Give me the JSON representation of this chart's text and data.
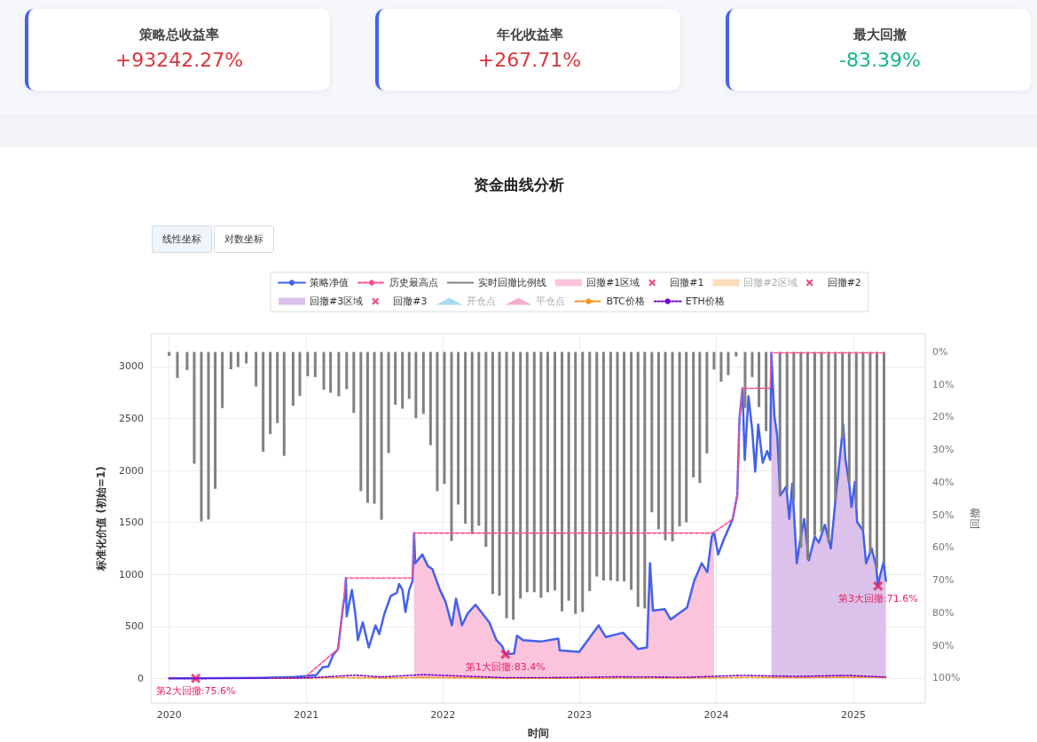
{
  "chart_data": [
    {
      "type": "other",
      "categories": [
        "策略总收益率",
        "年化收益率",
        "最大回撤"
      ],
      "value_labels": [
        "+93242.27%",
        "+267.71%",
        "-83.39%"
      ]
    },
    {
      "type": "line",
      "title": "资金曲线分析",
      "xlabel": "时间",
      "ylabel": "标准化价值 (初始=1)",
      "y2label": "回撤",
      "annotations": [
        "线性坐标",
        "对数坐标",
        {
          "text": "第1大回撤:83.4%",
          "x": "2022-06-17",
          "y": 232
        },
        {
          "text": "第2大回撤:75.6%",
          "x": "2020-03-12",
          "y": 1
        },
        {
          "text": "第3大回撤:71.6%",
          "x": "2025-03-08",
          "y": 889
        }
      ],
      "xlim": [
        "2019-11-13",
        "2025-07-12"
      ],
      "xticks": [
        "2020",
        "2021",
        "2022",
        "2023",
        "2024",
        "2025"
      ],
      "ylim": [
        -235,
        3315
      ],
      "yticks": [
        0,
        500,
        1000,
        1500,
        2000,
        2500,
        3000
      ],
      "y2lim": [
        107.7,
        -5.6
      ],
      "y2ticks": [
        {
          "value": 0,
          "label": "0%"
        },
        {
          "value": 10,
          "label": "10%"
        },
        {
          "value": 20,
          "label": "20%"
        },
        {
          "value": 30,
          "label": "30%"
        },
        {
          "value": 40,
          "label": "40%"
        },
        {
          "value": 50,
          "label": "50%"
        },
        {
          "value": 60,
          "label": "60%"
        },
        {
          "value": 70,
          "label": "70%"
        },
        {
          "value": 80,
          "label": "80%"
        },
        {
          "value": 90,
          "label": "90%"
        },
        {
          "value": 100,
          "label": "100%"
        }
      ],
      "grid": true,
      "legend": "top",
      "series": [
        {
          "name": "策略净值",
          "type": "line",
          "color": "#4361ee",
          "x": [
            "2020-01-01",
            "2020-03-12",
            "2020-06-01",
            "2020-09-01",
            "2020-12-01",
            "2021-01-01",
            "2021-01-28",
            "2021-02-14",
            "2021-03-01",
            "2021-03-14",
            "2021-03-27",
            "2021-04-10",
            "2021-04-14",
            "2021-04-17",
            "2021-04-19",
            "2021-05-03",
            "2021-05-12",
            "2021-05-19",
            "2021-06-01",
            "2021-06-17",
            "2021-07-05",
            "2021-07-15",
            "2021-07-29",
            "2021-08-15",
            "2021-08-31",
            "2021-09-06",
            "2021-09-15",
            "2021-09-23",
            "2021-10-03",
            "2021-10-12",
            "2021-10-16",
            "2021-10-19",
            "2021-11-07",
            "2021-11-22",
            "2021-12-04",
            "2021-12-24",
            "2022-01-08",
            "2022-01-25",
            "2022-02-05",
            "2022-02-21",
            "2022-03-08",
            "2022-03-29",
            "2022-05-05",
            "2022-05-24",
            "2022-06-08",
            "2022-06-17",
            "2022-07-10",
            "2022-07-18",
            "2022-08-03",
            "2022-09-19",
            "2022-11-05",
            "2022-11-09",
            "2022-12-31",
            "2023-02-21",
            "2023-03-12",
            "2023-04-27",
            "2023-06-06",
            "2023-06-30",
            "2023-07-08",
            "2023-07-16",
            "2023-08-16",
            "2023-09-01",
            "2023-10-15",
            "2023-11-03",
            "2023-11-23",
            "2023-12-08",
            "2023-12-20",
            "2023-12-26",
            "2024-01-06",
            "2024-01-21",
            "2024-02-14",
            "2024-02-26",
            "2024-03-03",
            "2024-03-11",
            "2024-03-17",
            "2024-03-27",
            "2024-04-06",
            "2024-04-14",
            "2024-04-22",
            "2024-05-04",
            "2024-05-16",
            "2024-05-24",
            "2024-05-27",
            "2024-06-04",
            "2024-06-12",
            "2024-06-20",
            "2024-07-06",
            "2024-07-14",
            "2024-07-22",
            "2024-08-03",
            "2024-08-11",
            "2024-08-23",
            "2024-09-04",
            "2024-09-20",
            "2024-10-01",
            "2024-10-17",
            "2024-11-02",
            "2024-11-14",
            "2024-12-05",
            "2024-12-11",
            "2024-12-21",
            "2024-12-27",
            "2025-01-05",
            "2025-01-11",
            "2025-01-27",
            "2025-02-04",
            "2025-02-19",
            "2025-03-03",
            "2025-03-08",
            "2025-03-11",
            "2025-03-23",
            "2025-03-29"
          ],
          "values": [
            1,
            1,
            3,
            6,
            15,
            23,
            34,
            108,
            114,
            227,
            284,
            710,
            795,
            966,
            597,
            852,
            625,
            369,
            540,
            298,
            511,
            426,
            625,
            795,
            824,
            909,
            852,
            639,
            852,
            937,
            1398,
            1108,
            1193,
            1080,
            1051,
            852,
            739,
            511,
            767,
            511,
            625,
            710,
            540,
            369,
            313,
            232,
            241,
            412,
            369,
            355,
            384,
            270,
            256,
            511,
            398,
            440,
            284,
            298,
            1108,
            653,
            668,
            568,
            682,
            938,
            1108,
            1023,
            1364,
            1406,
            1193,
            1335,
            1534,
            1761,
            2500,
            2790,
            2102,
            2713,
            2386,
            1989,
            2443,
            2074,
            2188,
            2102,
            3131,
            2528,
            2330,
            1761,
            1847,
            1534,
            1875,
            1108,
            1307,
            1534,
            1136,
            1364,
            1307,
            1477,
            1250,
            1705,
            2443,
            2102,
            1875,
            1648,
            1889,
            1506,
            1420,
            1108,
            1250,
            1080,
            889,
            952,
            1122,
            938
          ]
        },
        {
          "name": "历史最高点",
          "type": "line",
          "color": "#ff4d94",
          "line_style": "dashed",
          "x": [
            "2021-01-01",
            "2021-03-27",
            "2021-04-10",
            "2021-04-17",
            "2021-10-12",
            "2021-10-16",
            "2023-12-20",
            "2023-12-26",
            "2024-02-14",
            "2024-02-26",
            "2024-03-03",
            "2024-03-11",
            "2024-05-24",
            "2024-05-27",
            "2025-03-29"
          ],
          "values": [
            23,
            284,
            710,
            966,
            966,
            1398,
            1398,
            1406,
            1534,
            1761,
            2500,
            2790,
            2790,
            3131,
            3131
          ]
        },
        {
          "name": "实时回撤比例线",
          "type": "bar",
          "axis": "y2",
          "color": "#808080",
          "x": [
            "2020-01-01",
            "2020-01-23",
            "2020-02-18",
            "2020-03-08",
            "2020-03-27",
            "2020-04-15",
            "2020-05-03",
            "2020-05-22",
            "2020-06-14",
            "2020-07-03",
            "2020-07-25",
            "2020-08-20",
            "2020-09-08",
            "2020-09-27",
            "2020-10-16",
            "2020-11-03",
            "2020-11-27",
            "2020-12-15",
            "2021-01-05",
            "2021-01-25",
            "2021-02-17",
            "2021-03-07",
            "2021-03-29",
            "2021-04-19",
            "2021-05-08",
            "2021-05-27",
            "2021-06-14",
            "2021-07-02",
            "2021-07-21",
            "2021-08-09",
            "2021-08-27",
            "2021-09-15",
            "2021-10-03",
            "2021-10-21",
            "2021-11-10",
            "2021-11-29",
            "2021-12-17",
            "2022-01-05",
            "2022-01-24",
            "2022-02-11",
            "2022-03-02",
            "2022-03-20",
            "2022-04-07",
            "2022-04-26",
            "2022-05-14",
            "2022-06-01",
            "2022-06-20",
            "2022-07-08",
            "2022-07-27",
            "2022-08-14",
            "2022-09-02",
            "2022-09-20",
            "2022-10-08",
            "2022-10-27",
            "2022-11-15",
            "2022-12-03",
            "2022-12-21",
            "2023-01-09",
            "2023-01-28",
            "2023-02-16",
            "2023-03-06",
            "2023-03-25",
            "2023-04-12",
            "2023-04-30",
            "2023-05-19",
            "2023-06-06",
            "2023-06-24",
            "2023-07-13",
            "2023-07-31",
            "2023-08-18",
            "2023-09-06",
            "2023-09-25",
            "2023-10-13",
            "2023-11-01",
            "2023-11-18",
            "2023-12-07",
            "2023-12-26",
            "2024-01-14",
            "2024-02-02",
            "2024-02-23",
            "2024-03-18",
            "2024-04-06",
            "2024-04-24",
            "2024-05-13",
            "2024-06-19",
            "2024-07-08",
            "2024-07-26",
            "2024-08-14",
            "2024-09-01",
            "2024-09-20",
            "2024-10-08",
            "2024-10-27",
            "2024-11-14",
            "2024-12-03",
            "2024-12-21",
            "2025-01-09",
            "2025-01-27",
            "2025-02-15",
            "2025-03-05",
            "2025-03-24"
          ],
          "values": [
            1.2,
            8.0,
            5.6,
            34.3,
            52.0,
            51.4,
            42.0,
            17.2,
            5.3,
            4.6,
            3.5,
            10.6,
            30.6,
            25.2,
            21.8,
            31.9,
            16.5,
            13.5,
            7.4,
            7.7,
            11.6,
            12.5,
            13.6,
            11.4,
            18.7,
            42.7,
            46.3,
            46.6,
            51.5,
            31.0,
            16.2,
            17.4,
            14.4,
            20.3,
            19.0,
            28.6,
            42.7,
            40.5,
            58.0,
            46.8,
            52.7,
            55.8,
            53.3,
            59.8,
            74.3,
            74.8,
            81.7,
            82.2,
            75.7,
            73.7,
            73.7,
            75.4,
            73.7,
            73.2,
            79.6,
            76.3,
            80.4,
            79.8,
            73.4,
            68.9,
            70.1,
            70.1,
            70.4,
            70.4,
            73.0,
            78.2,
            78.7,
            49.2,
            54.4,
            57.8,
            58.1,
            53.5,
            52.3,
            38.5,
            40.2,
            31.1,
            5.4,
            9.1,
            7.1,
            1.4,
            17.2,
            7.7,
            16.9,
            24.3,
            43.8,
            42.5,
            45.7,
            60.1,
            63.7,
            56.4,
            55.3,
            58.5,
            45.5,
            26.5,
            40.1,
            47.3,
            54.6,
            61.7,
            66.5,
            64.9
          ]
        },
        {
          "name": "回撤#1区域",
          "type": "area",
          "color": "#fbc4dc",
          "x": [
            "2021-10-16",
            "2021-10-19",
            "2021-11-07",
            "2021-11-22",
            "2021-12-04",
            "2021-12-24",
            "2022-01-08",
            "2022-01-25",
            "2022-02-05",
            "2022-02-21",
            "2022-03-08",
            "2022-03-29",
            "2022-05-05",
            "2022-05-24",
            "2022-06-08",
            "2022-06-17",
            "2022-07-10",
            "2022-07-18",
            "2022-08-03",
            "2022-09-19",
            "2022-11-05",
            "2022-11-09",
            "2022-12-31",
            "2023-02-21",
            "2023-03-12",
            "2023-04-27",
            "2023-06-06",
            "2023-06-30",
            "2023-07-08",
            "2023-07-16",
            "2023-08-16",
            "2023-09-01",
            "2023-10-15",
            "2023-11-03",
            "2023-11-23",
            "2023-12-08",
            "2023-12-20",
            "2023-12-26"
          ],
          "values": [
            1398,
            1108,
            1193,
            1080,
            1051,
            852,
            739,
            511,
            767,
            511,
            625,
            710,
            540,
            369,
            313,
            232,
            241,
            412,
            369,
            355,
            384,
            270,
            256,
            511,
            398,
            440,
            284,
            298,
            1108,
            653,
            668,
            568,
            682,
            938,
            1108,
            1023,
            1364,
            1406
          ]
        },
        {
          "name": "回撤#1",
          "type": "scatter",
          "marker": "cross",
          "color": "#e91e63",
          "x": [
            "2022-06-17"
          ],
          "values": [
            232
          ]
        },
        {
          "name": "回撤#2区域",
          "type": "area",
          "color": "#fcdcb8"
        },
        {
          "name": "回撤#2",
          "type": "scatter",
          "marker": "cross",
          "color": "#e91e63",
          "x": [
            "2020-03-12"
          ],
          "values": [
            1
          ]
        },
        {
          "name": "回撤#3区域",
          "type": "area",
          "color": "#dcc2ea",
          "x": [
            "2024-05-27",
            "2024-06-04",
            "2024-06-12",
            "2024-06-20",
            "2024-07-06",
            "2024-07-14",
            "2024-07-22",
            "2024-08-03",
            "2024-08-11",
            "2024-08-23",
            "2024-09-04",
            "2024-09-20",
            "2024-10-01",
            "2024-10-17",
            "2024-11-02",
            "2024-11-14",
            "2024-12-05",
            "2024-12-11",
            "2024-12-21",
            "2024-12-27",
            "2025-01-05",
            "2025-01-11",
            "2025-01-27",
            "2025-02-04",
            "2025-02-19",
            "2025-03-03",
            "2025-03-08",
            "2025-03-11",
            "2025-03-23",
            "2025-03-29"
          ],
          "values": [
            3131,
            2528,
            2330,
            1761,
            1847,
            1534,
            1875,
            1108,
            1307,
            1534,
            1136,
            1364,
            1307,
            1477,
            1250,
            1705,
            2443,
            2102,
            1875,
            1648,
            1889,
            1506,
            1420,
            1108,
            1250,
            1080,
            889,
            952,
            1122,
            938
          ]
        },
        {
          "name": "回撤#3",
          "type": "scatter",
          "marker": "cross",
          "color": "#e91e63",
          "x": [
            "2025-03-08"
          ],
          "values": [
            889
          ]
        },
        {
          "name": "开仓点",
          "type": "scatter",
          "marker": "triangle",
          "color": "#8fd3ec"
        },
        {
          "name": "平仓点",
          "type": "scatter",
          "marker": "triangle",
          "color": "#f49ac1"
        },
        {
          "name": "BTC价格",
          "type": "line",
          "color": "#f7931a",
          "line_style": "dashed",
          "x": [
            "2020-10-01",
            "2021-01-01",
            "2021-04-14",
            "2021-07-20",
            "2021-11-10",
            "2022-06-18",
            "2022-11-20",
            "2023-06-30",
            "2023-12-31",
            "2024-03-14",
            "2024-08-05",
            "2024-12-17",
            "2025-03-29"
          ],
          "values": [
            1.6,
            4.5,
            8.5,
            4.5,
            9.4,
            2.7,
            2.2,
            4.2,
            6,
            10,
            8,
            14,
            11.5
          ]
        },
        {
          "name": "ETH价格",
          "type": "line",
          "color": "#7b00c8",
          "line_style": "dotted",
          "x": [
            "2020-01-01",
            "2020-03-12",
            "2020-06-01",
            "2020-09-01",
            "2021-01-01",
            "2021-05-12",
            "2021-07-20",
            "2021-11-10",
            "2022-06-18",
            "2022-11-05",
            "2023-04-15",
            "2023-10-15",
            "2024-03-11",
            "2024-08-05",
            "2024-12-16",
            "2025-03-29"
          ],
          "values": [
            1,
            0.8,
            1.8,
            3,
            5.6,
            32,
            15,
            37,
            7.5,
            9,
            16,
            12,
            30,
            20,
            30,
            14
          ]
        }
      ]
    }
  ]
}
